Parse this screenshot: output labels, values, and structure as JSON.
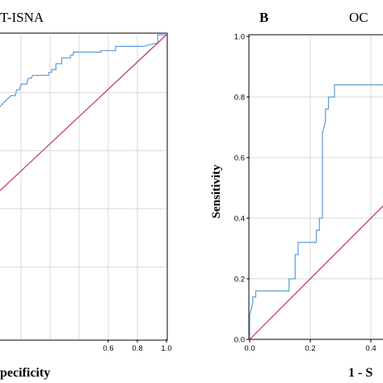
{
  "figure": {
    "left_title": "T-ISNA",
    "right_panel_letter": "B",
    "right_title": "OC"
  },
  "chart_data": [
    {
      "type": "line",
      "panel": "left",
      "title": "T-ISNA",
      "xlabel": "pecificity",
      "ylabel": "",
      "xlim": [
        -0.15,
        1.0
      ],
      "ylim": [
        -0.05,
        1.0
      ],
      "x_ticks": [
        "0.6",
        "0.8",
        "1.0"
      ],
      "grid": true,
      "series": [
        {
          "color": "#5b9bd5",
          "x": [
            -0.15,
            -0.07,
            -0.04,
            -0.03,
            -0.01,
            0.0,
            0.04,
            0.05,
            0.07,
            0.08,
            0.19,
            0.19,
            0.21,
            0.21,
            0.24,
            0.24,
            0.28,
            0.28,
            0.34,
            0.34,
            0.36,
            0.36,
            0.55,
            0.55,
            0.65,
            0.65,
            0.84,
            0.92,
            0.94,
            0.94,
            1.0,
            1.0
          ],
          "y": [
            0.75,
            0.79,
            0.79,
            0.81,
            0.81,
            0.83,
            0.83,
            0.85,
            0.85,
            0.86,
            0.86,
            0.87,
            0.87,
            0.88,
            0.88,
            0.9,
            0.9,
            0.92,
            0.92,
            0.93,
            0.93,
            0.94,
            0.94,
            0.945,
            0.945,
            0.96,
            0.96,
            0.97,
            0.97,
            1.0,
            1.0,
            1.0
          ]
        },
        {
          "color": "#c0336a",
          "x": [
            -0.15,
            1.0
          ],
          "y": [
            0.46,
            1.0
          ]
        }
      ]
    },
    {
      "type": "line",
      "panel": "right",
      "title": "OC",
      "xlabel": "1 - S",
      "ylabel": "Sensitivity",
      "xlim": [
        0.0,
        0.5
      ],
      "ylim": [
        0.0,
        1.0
      ],
      "x_ticks": [
        "0.0",
        "0.2",
        "0.4"
      ],
      "y_ticks": [
        "0.0",
        "0.2",
        "0.4",
        "0.6",
        "0.8",
        "1.0"
      ],
      "grid": true,
      "series": [
        {
          "color": "#5b9bd5",
          "x": [
            0.0,
            0.0,
            0.01,
            0.01,
            0.02,
            0.02,
            0.13,
            0.13,
            0.15,
            0.15,
            0.16,
            0.16,
            0.22,
            0.22,
            0.23,
            0.23,
            0.24,
            0.24,
            0.25,
            0.25,
            0.26,
            0.26,
            0.28,
            0.28,
            0.45,
            0.5
          ],
          "y": [
            0.0,
            0.08,
            0.12,
            0.14,
            0.14,
            0.16,
            0.16,
            0.2,
            0.2,
            0.28,
            0.28,
            0.32,
            0.32,
            0.36,
            0.36,
            0.4,
            0.4,
            0.68,
            0.72,
            0.76,
            0.76,
            0.8,
            0.8,
            0.84,
            0.84,
            0.84
          ]
        },
        {
          "color": "#c0336a",
          "x": [
            0.0,
            0.5
          ],
          "y": [
            0.0,
            0.5
          ]
        }
      ]
    }
  ]
}
